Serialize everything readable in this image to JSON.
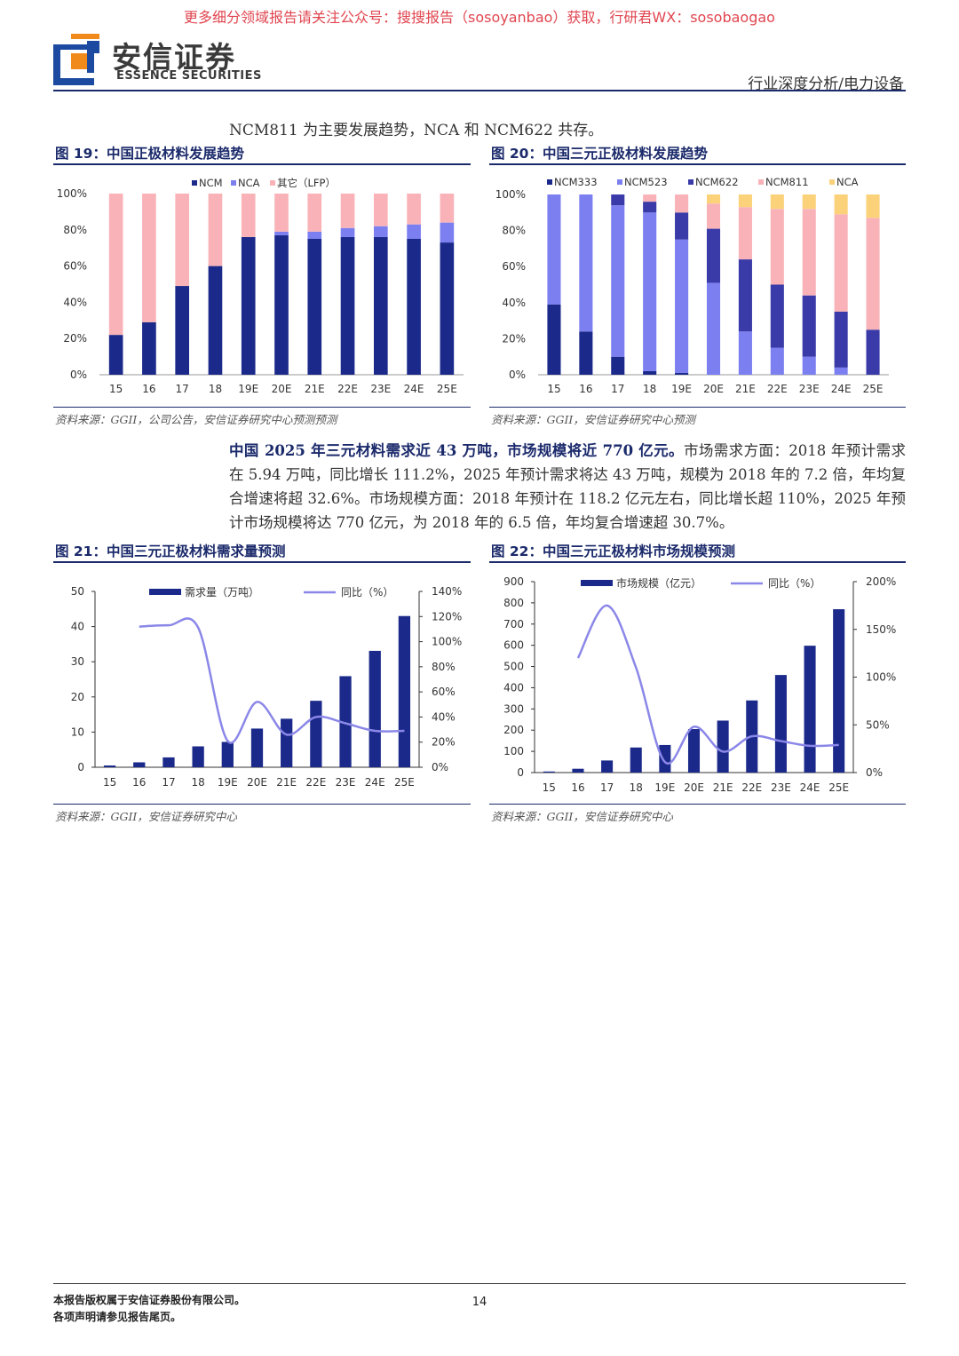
{
  "watermark": "更多细分领域报告请关注公众号：搜搜报告（sosoyanbao）获取，行研君WX：sosobaogao",
  "brand": {
    "cn": "安信证券",
    "en": "ESSENCE SECURITIES"
  },
  "header_right": "行业深度分析/电力设备",
  "intro": "NCM811 为主要发展趋势，NCA 和 NCM622 共存。",
  "fig19": {
    "title": "图 19：中国正极材料发展趋势",
    "source": "资料来源：GGII，公司公告，安信证券研究中心预测预测"
  },
  "fig20": {
    "title": "图 20：中国三元正极材料发展趋势",
    "source": "资料来源：GGII，安信证券研究中心预测"
  },
  "para": {
    "bold": "中国 2025 年三元材料需求近 43 万吨，市场规模将近 770 亿元。",
    "rest": "市场需求方面：2018 年预计需求在 5.94 万吨，同比增长 111.2%，2025 年预计需求将达 43 万吨，规模为 2018 年的 7.2 倍，年均复合增速将超 32.6%。市场规模方面：2018 年预计在 118.2 亿元左右，同比增长超 110%，2025 年预计市场规模将达 770 亿元，为 2018 年的 6.5 倍，年均复合增速超 30.7%。"
  },
  "fig21": {
    "title": "图 21：中国三元正极材料需求量预测",
    "source": "资料来源：GGII，安信证券研究中心"
  },
  "fig22": {
    "title": "图 22：中国三元正极材料市场规模预测",
    "source": "资料来源：GGII，安信证券研究中心"
  },
  "footer": {
    "line1": "本报告版权属于安信证券股份有限公司。",
    "line2": "各项声明请参见报告尾页。",
    "page": "14"
  },
  "colors": {
    "navy": "#1b2a8a",
    "lavender": "#7b7ff0",
    "pink": "#f9b3b8",
    "midblue": "#3a3aa8",
    "orange": "#fbd27a",
    "line": "#8b87e8"
  },
  "chart_data": [
    {
      "id": "fig19",
      "type": "bar",
      "stacked": true,
      "categories": [
        "15",
        "16",
        "17",
        "18",
        "19E",
        "20E",
        "21E",
        "22E",
        "23E",
        "24E",
        "25E"
      ],
      "series": [
        {
          "name": "NCM",
          "values": [
            22,
            29,
            49,
            60,
            76,
            77,
            75,
            76,
            76,
            75,
            73
          ]
        },
        {
          "name": "NCA",
          "values": [
            0,
            0,
            0,
            0,
            0,
            2,
            4,
            5,
            6,
            8,
            11
          ]
        },
        {
          "name": "其它（LFP）",
          "values": [
            78,
            71,
            51,
            40,
            24,
            21,
            21,
            19,
            18,
            17,
            16
          ]
        }
      ],
      "ylim": [
        0,
        100
      ],
      "yticks": [
        "0%",
        "20%",
        "40%",
        "60%",
        "80%",
        "100%"
      ]
    },
    {
      "id": "fig20",
      "type": "bar",
      "stacked": true,
      "categories": [
        "15",
        "16",
        "17",
        "18",
        "19E",
        "20E",
        "21E",
        "22E",
        "23E",
        "24E",
        "25E"
      ],
      "series": [
        {
          "name": "NCM333",
          "values": [
            39,
            24,
            10,
            2,
            1,
            0,
            0,
            0,
            0,
            0,
            0
          ]
        },
        {
          "name": "NCM523",
          "values": [
            61,
            76,
            84,
            88,
            74,
            51,
            24,
            15,
            10,
            4,
            0
          ]
        },
        {
          "name": "NCM622",
          "values": [
            0,
            0,
            6,
            6,
            15,
            30,
            40,
            35,
            34,
            31,
            25
          ]
        },
        {
          "name": "NCM811",
          "values": [
            0,
            0,
            0,
            4,
            10,
            14,
            29,
            42,
            48,
            54,
            62
          ]
        },
        {
          "name": "NCA",
          "values": [
            0,
            0,
            0,
            0,
            0,
            5,
            7,
            8,
            8,
            11,
            13
          ]
        }
      ],
      "ylim": [
        0,
        100
      ],
      "yticks": [
        "0%",
        "20%",
        "40%",
        "60%",
        "80%",
        "100%"
      ]
    },
    {
      "id": "fig21",
      "type": "bar+line",
      "categories": [
        "15",
        "16",
        "17",
        "18",
        "19E",
        "20E",
        "21E",
        "22E",
        "23E",
        "24E",
        "25E"
      ],
      "bar": {
        "name": "需求量（万吨）",
        "values": [
          0.5,
          1.4,
          2.8,
          5.94,
          7.2,
          11.0,
          13.8,
          18.9,
          25.9,
          33.1,
          43.0
        ],
        "ylim": [
          0,
          50
        ],
        "yticks": [
          "0",
          "10",
          "20",
          "30",
          "40",
          "50"
        ]
      },
      "line": {
        "name": "同比（%）",
        "values": [
          null,
          112,
          113,
          111.2,
          21,
          52,
          26,
          40,
          35,
          29,
          29
        ],
        "ylim": [
          0,
          140
        ],
        "yticks": [
          "0%",
          "20%",
          "40%",
          "60%",
          "80%",
          "100%",
          "120%",
          "140%"
        ]
      }
    },
    {
      "id": "fig22",
      "type": "bar+line",
      "categories": [
        "15",
        "16",
        "17",
        "18",
        "19E",
        "20E",
        "21E",
        "22E",
        "23E",
        "24E",
        "25E"
      ],
      "bar": {
        "name": "市场规模（亿元）",
        "values": [
          5,
          18,
          57,
          118.2,
          130,
          205,
          245,
          340,
          460,
          598,
          770
        ],
        "ylim": [
          0,
          900
        ],
        "yticks": [
          "0",
          "100",
          "200",
          "300",
          "400",
          "500",
          "600",
          "700",
          "800",
          "900"
        ]
      },
      "line": {
        "name": "同比（%）",
        "values": [
          null,
          120,
          175,
          110,
          11,
          48,
          22,
          38,
          33,
          28,
          29
        ],
        "ylim": [
          0,
          200
        ],
        "yticks": [
          "0%",
          "50%",
          "100%",
          "150%",
          "200%"
        ]
      }
    }
  ]
}
